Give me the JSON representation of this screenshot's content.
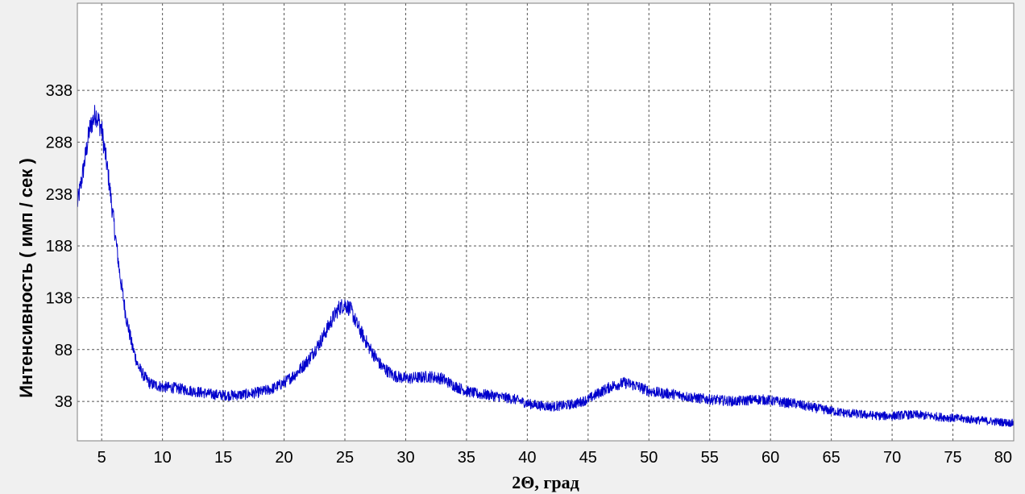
{
  "chart_data": {
    "type": "line",
    "title": "",
    "xlabel": "2Θ, град",
    "ylabel": "Интенсивность ( имп / сек )",
    "xlim": [
      3,
      80
    ],
    "ylim": [
      0,
      422
    ],
    "x_ticks": [
      5,
      10,
      15,
      20,
      25,
      30,
      35,
      40,
      45,
      50,
      55,
      60,
      65,
      70,
      75,
      80
    ],
    "y_ticks": [
      38,
      88,
      138,
      188,
      238,
      288,
      338
    ],
    "grid": true,
    "series": [
      {
        "color": "#0000cc",
        "x": [
          3,
          3.5,
          4,
          4.5,
          5,
          5.5,
          6,
          6.5,
          7,
          7.5,
          8,
          8.5,
          9,
          10,
          11,
          12,
          13,
          14,
          15,
          16,
          17,
          18,
          19,
          20,
          21,
          22,
          23,
          24,
          24.5,
          25,
          25.5,
          26,
          27,
          28,
          29,
          30,
          31,
          32,
          33,
          34,
          35,
          36,
          37,
          38,
          39,
          40,
          41,
          42,
          43,
          44,
          45,
          46,
          47,
          48,
          49,
          50,
          51,
          52,
          53,
          54,
          55,
          56,
          57,
          58,
          59,
          60,
          61,
          62,
          63,
          64,
          65,
          66,
          67,
          68,
          69,
          70,
          71,
          72,
          73,
          74,
          75,
          76,
          77,
          78,
          79,
          80
        ],
        "y": [
          228,
          262,
          300,
          316,
          300,
          260,
          210,
          160,
          120,
          92,
          72,
          62,
          55,
          52,
          51,
          49,
          47,
          45,
          44,
          44,
          45,
          47,
          50,
          56,
          65,
          78,
          96,
          118,
          128,
          132,
          126,
          112,
          90,
          72,
          63,
          60,
          61,
          62,
          60,
          53,
          48,
          45,
          44,
          42,
          40,
          36,
          34,
          33,
          34,
          36,
          40,
          47,
          53,
          56,
          53,
          48,
          46,
          45,
          43,
          41,
          40,
          39,
          38,
          39,
          40,
          39,
          37,
          36,
          33,
          31,
          29,
          27,
          26,
          25,
          24,
          24,
          25,
          25,
          24,
          23,
          22,
          21,
          20,
          19,
          18,
          17
        ]
      }
    ]
  }
}
